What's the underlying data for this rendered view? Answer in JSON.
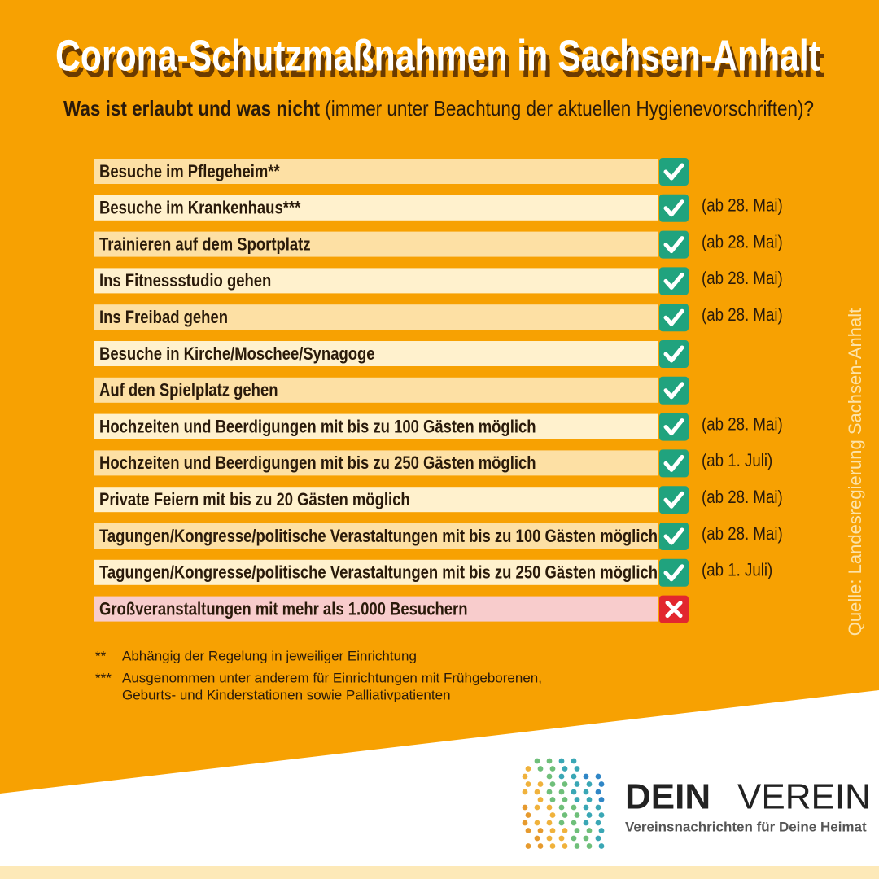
{
  "header": {
    "title": "Corona-Schutzmaßnahmen in Sachsen-Anhalt",
    "subtitle_bold": "Was ist erlaubt und was nicht",
    "subtitle_rest": "(immer unter Beachtung der aktuellen Hygienevorschriften)?"
  },
  "table": {
    "rows": [
      {
        "label": "Besuche im Pflegeheim**",
        "allowed": true
      },
      {
        "label": "Besuche im Krankenhaus***",
        "allowed": true,
        "note": "(ab 28. Mai)"
      },
      {
        "label": "Trainieren auf dem Sportplatz",
        "allowed": true,
        "note": "(ab 28. Mai)"
      },
      {
        "label": "Ins Fitnessstudio gehen",
        "allowed": true,
        "note": "(ab 28. Mai)"
      },
      {
        "label": "Ins Freibad gehen",
        "allowed": true,
        "note": "(ab 28. Mai)"
      },
      {
        "label": "Besuche in Kirche/Moschee/Synagoge",
        "allowed": true
      },
      {
        "label": "Auf den Spielplatz gehen",
        "allowed": true
      },
      {
        "label": "Hochzeiten und Beerdigungen mit bis zu 100 Gästen möglich",
        "allowed": true,
        "note": "(ab 28. Mai)"
      },
      {
        "label": "Hochzeiten und Beerdigungen mit bis zu 250 Gästen möglich",
        "allowed": true,
        "note": "(ab 1. Juli)"
      },
      {
        "label": "Private Feiern mit bis zu 20 Gästen möglich",
        "allowed": true,
        "note": "(ab 28. Mai)"
      },
      {
        "label": "Tagungen/Kongresse/politische Verastaltungen mit bis zu 100 Gästen möglich",
        "allowed": true,
        "note": "(ab 28. Mai)"
      },
      {
        "label": "Tagungen/Kongresse/politische Verastaltungen mit bis zu 250 Gästen möglich",
        "allowed": true,
        "note": "(ab 1. Juli)"
      },
      {
        "label": "Großveranstaltungen mit mehr als 1.000 Besuchern",
        "allowed": false
      }
    ]
  },
  "footnotes": [
    {
      "marker": "**",
      "lines": [
        "Abhängig der Regelung in jeweiliger Einrichtung"
      ]
    },
    {
      "marker": "***",
      "lines": [
        "Ausgenommen unter anderem für Einrichtungen mit Frühgeborenen,",
        "Geburts- und Kinderstationen sowie Palliativpatienten"
      ]
    }
  ],
  "source": "Quelle: Landesregierung Sachsen-Anhalt",
  "logo": {
    "word1": "DEIN",
    "word2": "VEREIN",
    "tagline": "Vereinsnachrichten für Deine Heimat"
  }
}
